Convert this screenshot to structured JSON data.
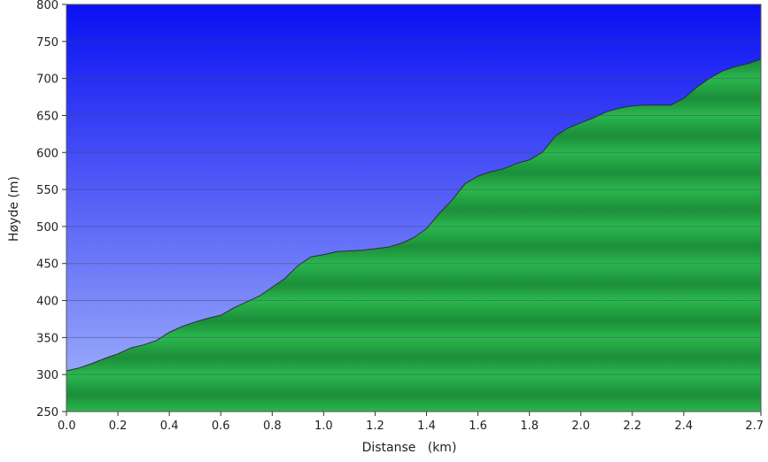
{
  "chart_data": {
    "type": "area",
    "title": "",
    "xlabel": "Distanse   (km)",
    "ylabel": "Høyde (m)",
    "xlim": [
      0.0,
      2.7
    ],
    "ylim": [
      250,
      800
    ],
    "x_ticks": [
      "0.0",
      "0.2",
      "0.4",
      "0.6",
      "0.8",
      "1.0",
      "1.2",
      "1.4",
      "1.6",
      "1.8",
      "2.0",
      "2.2",
      "2.4",
      "2.7"
    ],
    "x_tick_values": [
      0.0,
      0.2,
      0.4,
      0.6,
      0.8,
      1.0,
      1.2,
      1.4,
      1.6,
      1.8,
      2.0,
      2.2,
      2.4,
      2.7
    ],
    "y_ticks": [
      "250",
      "300",
      "350",
      "400",
      "450",
      "500",
      "550",
      "600",
      "650",
      "700",
      "750",
      "800"
    ],
    "y_tick_values": [
      250,
      300,
      350,
      400,
      450,
      500,
      550,
      600,
      650,
      700,
      750,
      800
    ],
    "grid": "horizontal",
    "colors": {
      "sky_top": "#0a10f2",
      "sky_bottom": "#a6b6fb",
      "terrain_light": "#2bb84e",
      "terrain_dark": "#1a8a38",
      "outline": "#2b2f33"
    },
    "series": [
      {
        "x": [
          0.0,
          0.05,
          0.1,
          0.15,
          0.2,
          0.25,
          0.3,
          0.35,
          0.4,
          0.45,
          0.5,
          0.55,
          0.6,
          0.65,
          0.7,
          0.75,
          0.8,
          0.85,
          0.9,
          0.95,
          1.0,
          1.05,
          1.1,
          1.15,
          1.2,
          1.25,
          1.3,
          1.35,
          1.4,
          1.45,
          1.5,
          1.55,
          1.6,
          1.65,
          1.7,
          1.75,
          1.8,
          1.85,
          1.9,
          1.95,
          2.0,
          2.05,
          2.1,
          2.15,
          2.2,
          2.25,
          2.3,
          2.35,
          2.4,
          2.45,
          2.5,
          2.55,
          2.6,
          2.65,
          2.7
        ],
        "values": [
          305,
          309,
          315,
          322,
          328,
          336,
          340,
          346,
          357,
          365,
          371,
          376,
          380,
          390,
          398,
          406,
          418,
          430,
          447,
          459,
          462,
          466,
          467,
          468,
          470,
          472,
          477,
          485,
          497,
          518,
          536,
          558,
          568,
          574,
          578,
          585,
          590,
          600,
          622,
          633,
          640,
          647,
          655,
          660,
          663,
          664,
          664,
          664,
          673,
          688,
          700,
          710,
          716,
          720,
          726
        ]
      }
    ]
  }
}
